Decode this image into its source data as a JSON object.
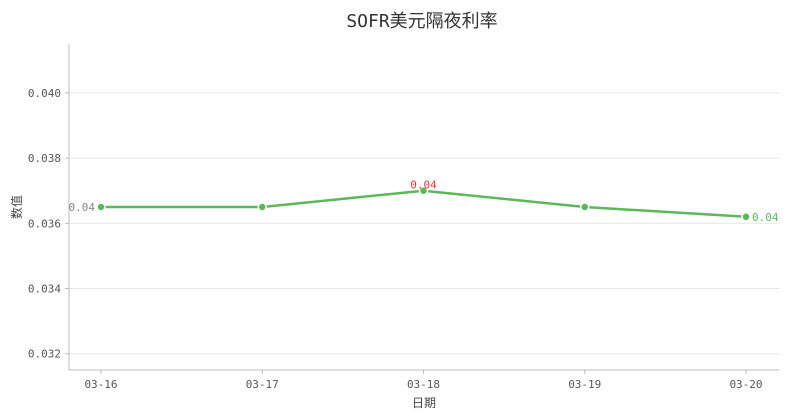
{
  "chart_data": {
    "type": "line",
    "title": "SOFR美元隔夜利率",
    "xlabel": "日期",
    "ylabel": "数值",
    "categories": [
      "03-16",
      "03-17",
      "03-18",
      "03-19",
      "03-20"
    ],
    "series": [
      {
        "values": [
          0.0365,
          0.0365,
          0.037,
          0.0365,
          0.0362
        ]
      }
    ],
    "ylim": [
      0.0315,
      0.0415
    ],
    "yticks": [
      0.032,
      0.034,
      0.036,
      0.038,
      0.04
    ],
    "ytick_labels": [
      "0.032",
      "0.034",
      "0.036",
      "0.038",
      "0.040"
    ],
    "grid": true,
    "colors": {
      "line": "#5cb85c",
      "start_label": "#888888",
      "max_label": "#e53935",
      "end_label": "#5cb85c",
      "point_stroke": "#ffffff"
    },
    "annotations": [
      {
        "index": 0,
        "text": "0.04",
        "role": "start",
        "position": "left"
      },
      {
        "index": 2,
        "text": "0.04",
        "role": "max",
        "position": "above"
      },
      {
        "index": 4,
        "text": "0.04",
        "role": "end",
        "position": "right"
      }
    ]
  }
}
